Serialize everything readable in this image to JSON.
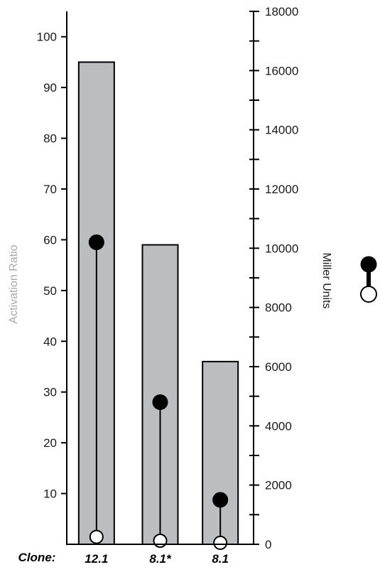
{
  "chart_data": {
    "type": "bar",
    "categories": [
      "12.1",
      "8.1*",
      "8.1"
    ],
    "category_prefix": "Clone:",
    "bar_series": {
      "axis": "left",
      "values": [
        95,
        59,
        36
      ],
      "color": "#bcbdc1"
    },
    "lollipop_series": {
      "axis": "right",
      "top_values": [
        10200,
        4800,
        1500
      ],
      "base_values": [
        250,
        120,
        50
      ],
      "top_marker": "filled-circle",
      "base_marker": "open-circle"
    },
    "left_axis": {
      "label": "Activation Ratio",
      "ylim": [
        0,
        105
      ],
      "ticks": [
        10,
        20,
        30,
        40,
        50,
        60,
        70,
        80,
        90,
        100
      ],
      "tick_labels": [
        "10",
        "20",
        "30",
        "40",
        "50",
        "60",
        "70",
        "80",
        "90",
        "100"
      ]
    },
    "right_axis": {
      "label": "Miller Units",
      "ylim": [
        0,
        18000
      ],
      "ticks": [
        0,
        2000,
        4000,
        6000,
        8000,
        10000,
        12000,
        14000,
        16000,
        18000
      ],
      "tick_labels": [
        "0",
        "2000",
        "4000",
        "6000",
        "8000",
        "10000",
        "12000",
        "14000",
        "16000",
        "18000"
      ]
    },
    "legend": {
      "position": "right",
      "symbol": "filled-circle-over-open-circle"
    },
    "grid": false
  }
}
